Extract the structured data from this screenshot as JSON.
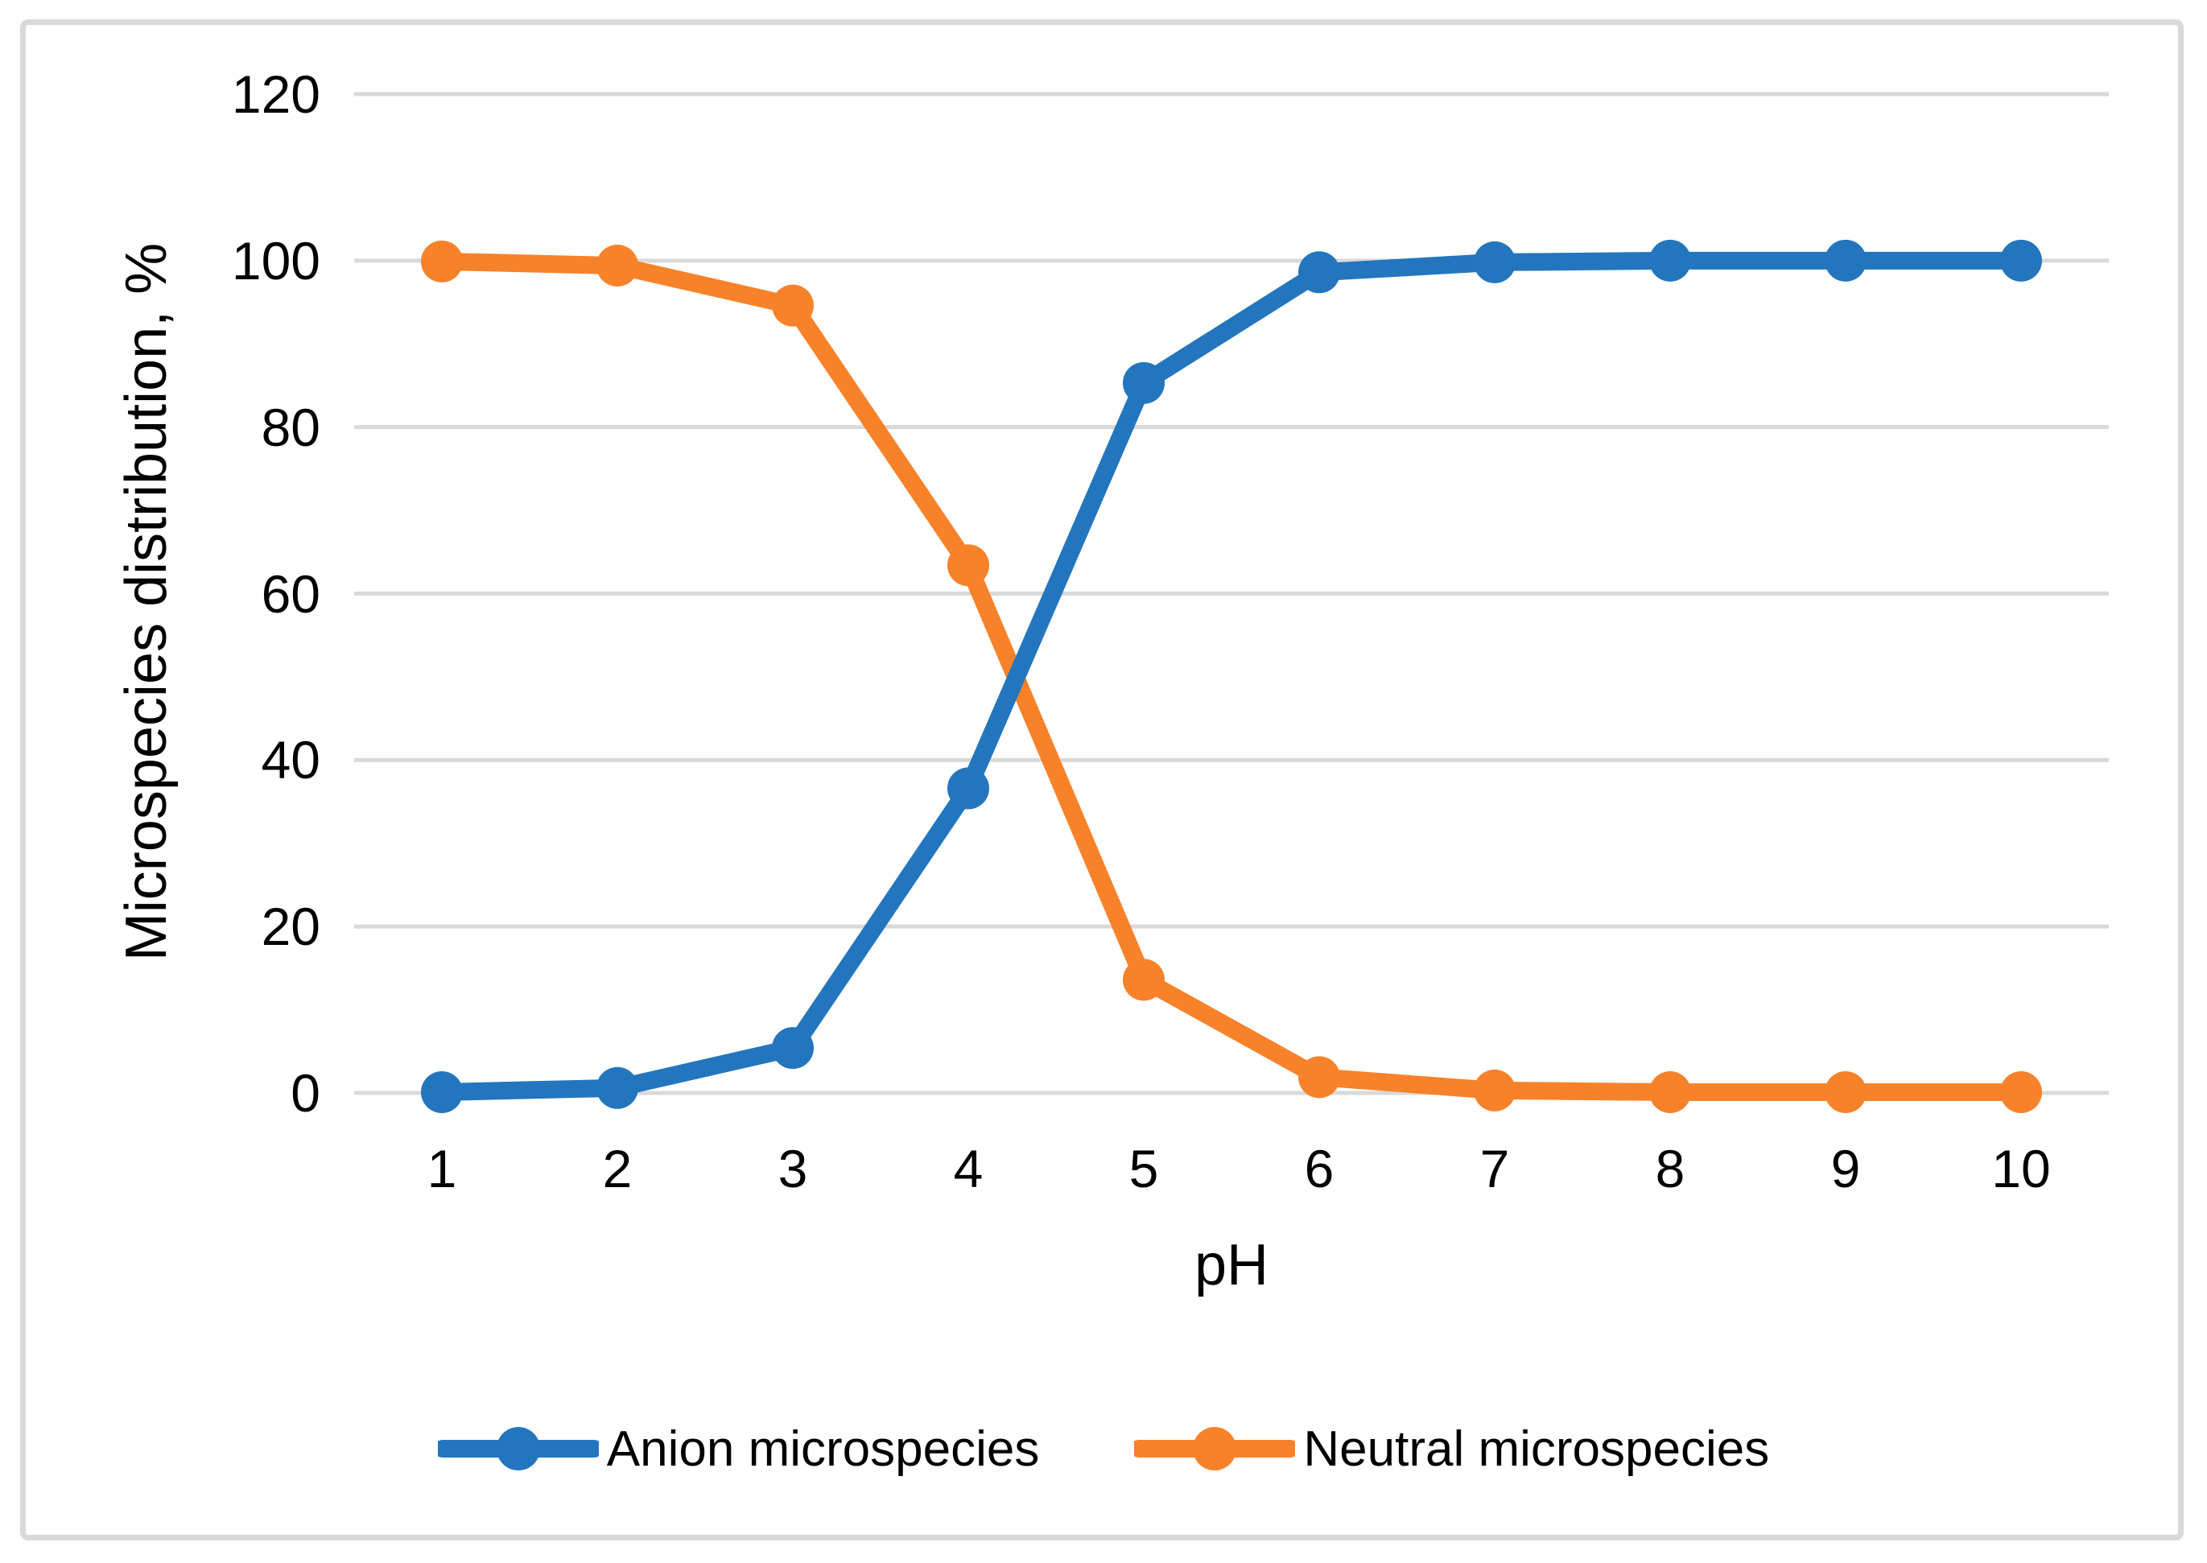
{
  "figure": {
    "background": "#ffffff",
    "frame_border_color": "#d9d9d9",
    "text_color": "#000000"
  },
  "chart_data": {
    "type": "line",
    "title": "",
    "xlabel": "pH",
    "ylabel": "Microspecies distribution, %",
    "x": [
      1,
      2,
      3,
      4,
      5,
      6,
      7,
      8,
      9,
      10
    ],
    "xtick_labels": [
      "1",
      "2",
      "3",
      "4",
      "5",
      "6",
      "7",
      "8",
      "9",
      "10"
    ],
    "ylim": [
      0,
      120
    ],
    "yticks": [
      0,
      20,
      40,
      60,
      80,
      100,
      120
    ],
    "ytick_labels": [
      "0",
      "20",
      "40",
      "60",
      "80",
      "100",
      "120"
    ],
    "grid": "horizontal",
    "gridline_color": "#d9d9d9",
    "legend_position": "bottom-center",
    "marker": "circle",
    "series": [
      {
        "name": "Anion microspecies",
        "color": "#2376be",
        "marker": "circle",
        "values": [
          0.1,
          0.6,
          5.4,
          36.6,
          85.3,
          98.6,
          99.8,
          100,
          100,
          100
        ]
      },
      {
        "name": "Neutral microspecies",
        "color": "#f8822a",
        "marker": "circle",
        "values": [
          99.9,
          99.4,
          94.6,
          63.4,
          13.6,
          1.9,
          0.3,
          0.1,
          0.1,
          0.1
        ]
      }
    ]
  }
}
